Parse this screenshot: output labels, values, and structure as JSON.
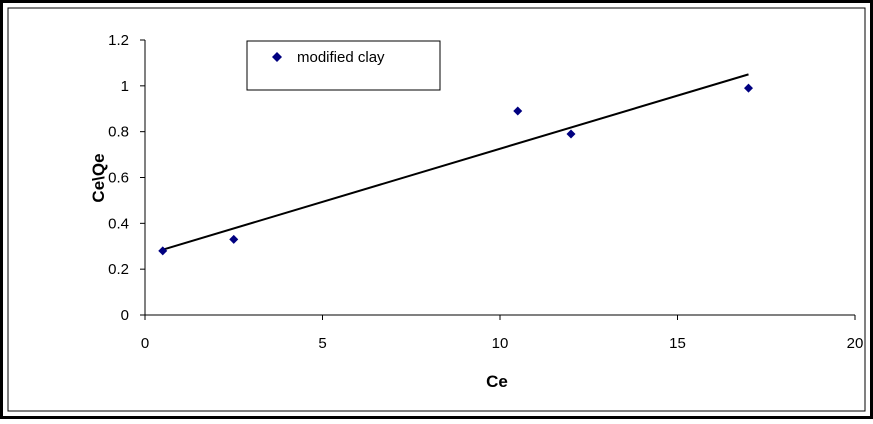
{
  "chart_data": {
    "type": "scatter",
    "title": "",
    "xlabel": "Ce",
    "ylabel": "Ce\\Qe",
    "xlim": [
      0,
      20
    ],
    "ylim": [
      0,
      1.2
    ],
    "xticks": [
      0,
      5,
      10,
      15,
      20
    ],
    "yticks": [
      0,
      0.2,
      0.4,
      0.6,
      0.8,
      1,
      1.2
    ],
    "ytick_labels": [
      "0",
      "0.2",
      "0.4",
      "0.6",
      "0.8",
      "1",
      "1.2"
    ],
    "legend_position": "top-left",
    "grid": false,
    "series": [
      {
        "name": "modified clay",
        "marker": "diamond",
        "color": "#000080",
        "x": [
          0.5,
          2.5,
          10.5,
          12,
          17
        ],
        "y": [
          0.28,
          0.33,
          0.89,
          0.79,
          0.99
        ]
      }
    ],
    "trendline": {
      "color": "#000000",
      "x": [
        0.5,
        17
      ],
      "y": [
        0.285,
        1.05
      ]
    }
  }
}
